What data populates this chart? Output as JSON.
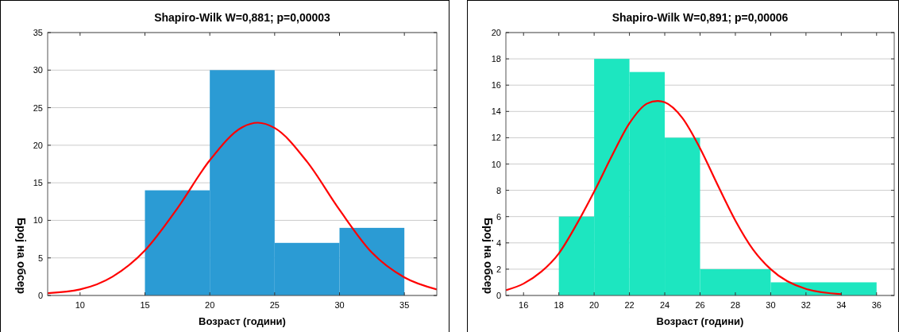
{
  "chart_data": [
    {
      "type": "histogram",
      "title": "Shapiro-Wilk W=0,881; p=0,00003",
      "xlabel": "Возраст (години)",
      "ylabel": "Број на обсер",
      "xlim": [
        7.5,
        37.5
      ],
      "xticks": [
        10,
        15,
        20,
        25,
        30,
        35
      ],
      "ylim": [
        0,
        35
      ],
      "yticks": [
        0,
        5,
        10,
        15,
        20,
        25,
        30,
        35
      ],
      "grid": "y",
      "series": [
        {
          "color": "#2b9bd4",
          "bins": [
            15,
            20,
            25,
            30,
            35
          ],
          "values": [
            14,
            30,
            7,
            9
          ]
        },
        {
          "type": "line",
          "color": "#ff0000",
          "x": [
            7.5,
            10,
            12.5,
            15,
            17.5,
            20,
            22.5,
            23.7,
            25,
            27.5,
            30,
            32.5,
            35,
            37.5
          ],
          "values": [
            0.3,
            0.8,
            2.5,
            6,
            11.6,
            18,
            22.4,
            23,
            22.3,
            17.8,
            11.4,
            5.7,
            2.4,
            0.8
          ]
        }
      ]
    },
    {
      "type": "histogram",
      "title": "Shapiro-Wilk W=0,891; p=0,00006",
      "xlabel": "Возраст (години)",
      "ylabel": "Број на обсер",
      "xlim": [
        15,
        37
      ],
      "xticks": [
        16,
        18,
        20,
        22,
        24,
        26,
        28,
        30,
        32,
        34,
        36
      ],
      "ylim": [
        0,
        20
      ],
      "yticks": [
        0,
        2,
        4,
        6,
        8,
        10,
        12,
        14,
        16,
        18,
        20
      ],
      "grid": "y",
      "series": [
        {
          "color": "#1de6c0",
          "bins": [
            18,
            20,
            22,
            24,
            26,
            30,
            36
          ],
          "values": [
            6,
            18,
            17,
            12,
            2,
            1
          ]
        },
        {
          "type": "line",
          "color": "#ff0000",
          "x": [
            15,
            16,
            17,
            18,
            19,
            20,
            21,
            22,
            23,
            23.6,
            24,
            25,
            26,
            27,
            28,
            29,
            30,
            32,
            34
          ],
          "values": [
            0.4,
            0.9,
            1.8,
            3.2,
            5.4,
            7.9,
            10.6,
            13.1,
            14.6,
            14.8,
            14.7,
            13.5,
            11.2,
            8.4,
            5.7,
            3.5,
            2,
            0.5,
            0.1
          ]
        }
      ]
    }
  ]
}
